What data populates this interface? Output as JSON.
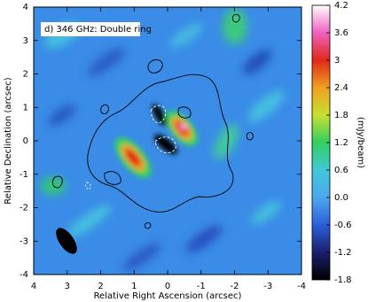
{
  "chart_data": {
    "type": "heatmap",
    "annotation": "d) 346 GHz: Double ring",
    "xlabel": "Relative Right Ascension (arcsec)",
    "ylabel": "Relative Declination (arcsec)",
    "xlim": [
      4,
      -4
    ],
    "xticks": [
      4,
      3,
      2,
      1,
      0,
      -1,
      -2,
      -3,
      -4
    ],
    "ylim": [
      -4,
      4
    ],
    "yticks": [
      -4,
      -3,
      -2,
      -1,
      0,
      1,
      2,
      3,
      4
    ],
    "colorbar": {
      "label": "(mJy/beam)",
      "lim": [
        -1.8,
        4.2
      ],
      "ticks": [
        -1.8,
        -1.2,
        -0.6,
        {
          "value": 0,
          "label": "0.0"
        },
        0.6,
        1.2,
        1.8,
        2.4,
        3.0,
        3.6,
        4.2
      ],
      "colors": [
        "#000000",
        "#1a1f6e",
        "#2a5fd8",
        "#4da6f0",
        "#40c8d8",
        "#30d060",
        "#c8e030",
        "#f0a020",
        "#e02818",
        "#f060c0",
        "#ffffff"
      ]
    }
  }
}
